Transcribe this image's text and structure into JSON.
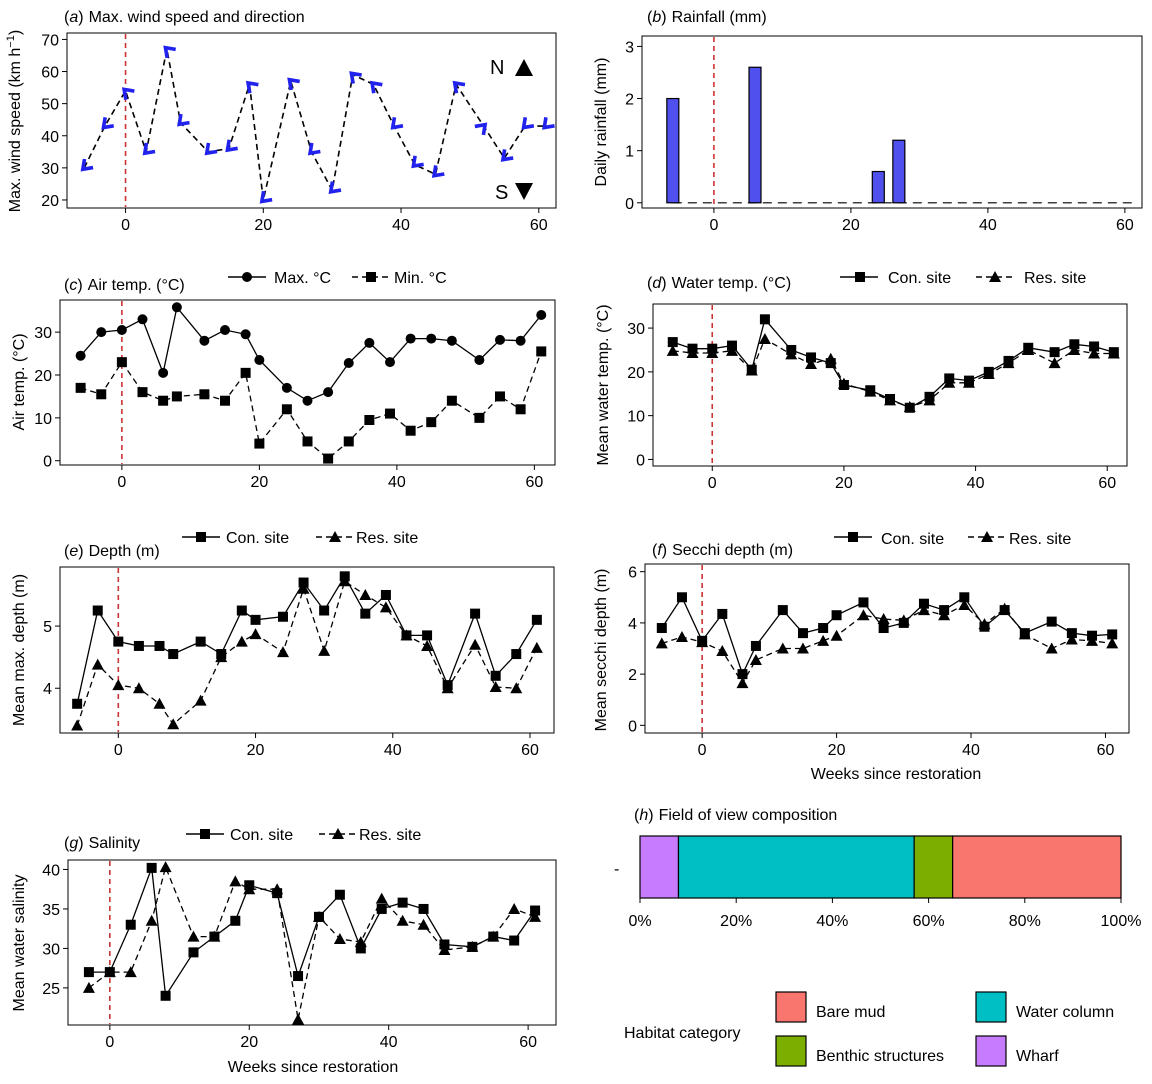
{
  "chart_data": [
    {
      "id": "a",
      "type": "line",
      "panel_letter": "a",
      "title": "Max. wind speed and direction",
      "xlabel": "",
      "ylabel": "Max. wind speed (km h",
      "ylabel_sup": "−1",
      "ylabel_end": ")",
      "xlim": [
        -8.5,
        62.5
      ],
      "ylim": [
        17.5,
        72
      ],
      "xticks": [
        0,
        20,
        40,
        60
      ],
      "yticks": [
        20,
        30,
        40,
        50,
        60,
        70
      ],
      "restoration_line_x": 0,
      "compass": {
        "north": "N",
        "south": "S"
      },
      "series": [
        {
          "name": "Max. wind speed",
          "x": [
            -6,
            -3,
            0,
            3,
            6,
            8,
            12,
            15,
            18,
            20,
            24,
            27,
            30,
            33,
            36,
            39,
            42,
            45,
            48,
            52,
            55,
            58,
            61
          ],
          "y": [
            30,
            43,
            54,
            35,
            67,
            44,
            35,
            36,
            56,
            20,
            57,
            35,
            23,
            59,
            56,
            43,
            31,
            28,
            56,
            43,
            33,
            43,
            43
          ],
          "direction_deg": [
            135,
            135,
            225,
            135,
            225,
            135,
            135,
            135,
            225,
            135,
            225,
            135,
            135,
            225,
            225,
            135,
            135,
            135,
            225,
            315,
            135,
            135,
            135
          ]
        }
      ]
    },
    {
      "id": "b",
      "type": "bar",
      "panel_letter": "b",
      "title": "Rainfall (mm)",
      "xlabel": "",
      "ylabel": "Daily rainfall (mm)",
      "xlim": [
        -10.5,
        62.5
      ],
      "ylim": [
        -0.1,
        3.2
      ],
      "xticks": [
        0,
        20,
        40,
        60
      ],
      "yticks": [
        0,
        1,
        2,
        3
      ],
      "restoration_line_x": 0,
      "x": [
        -6,
        6,
        24,
        27
      ],
      "values": [
        2.0,
        2.6,
        0.6,
        1.2
      ],
      "zero_line_x": [
        -6,
        61
      ]
    },
    {
      "id": "c",
      "type": "line",
      "panel_letter": "c",
      "title": "Air temp. (°C)",
      "xlabel": "",
      "ylabel": "Air temp. (°C)",
      "xlim": [
        -9,
        63
      ],
      "ylim": [
        -1,
        37.5
      ],
      "xticks": [
        0,
        20,
        40,
        60
      ],
      "yticks": [
        0,
        10,
        20,
        30
      ],
      "restoration_line_x": 0,
      "legend": {
        "position": "top"
      },
      "x": [
        -6,
        -3,
        0,
        3,
        6,
        8,
        12,
        15,
        18,
        20,
        24,
        27,
        30,
        33,
        36,
        39,
        42,
        45,
        48,
        52,
        55,
        58,
        61
      ],
      "series": [
        {
          "name": "Max. °C",
          "marker": "circle",
          "style": "solid",
          "values": [
            24.5,
            30,
            30.5,
            33,
            20.5,
            35.8,
            28,
            30.5,
            29.5,
            23.5,
            17,
            14,
            16,
            22.8,
            27.5,
            23,
            28.5,
            28.5,
            28,
            23.5,
            28.2,
            28,
            34
          ]
        },
        {
          "name": "Min. °C",
          "marker": "square",
          "style": "dashed",
          "values": [
            17,
            15.5,
            23,
            16,
            14,
            15,
            15.5,
            14,
            20.5,
            4,
            12,
            4.5,
            0.5,
            4.5,
            9.5,
            11,
            7,
            9,
            14,
            10,
            15,
            12,
            25.5
          ]
        }
      ]
    },
    {
      "id": "d",
      "type": "line",
      "panel_letter": "d",
      "title": "Water temp. (°C)",
      "xlabel": "",
      "ylabel": "Mean water temp. (°C)",
      "xlim": [
        -9,
        63
      ],
      "ylim": [
        -1.5,
        35.5
      ],
      "xticks": [
        0,
        20,
        40,
        60
      ],
      "yticks": [
        0,
        10,
        20,
        30
      ],
      "restoration_line_x": 0,
      "legend": {
        "position": "top"
      },
      "x": [
        -6,
        -3,
        0,
        3,
        6,
        8,
        12,
        15,
        18,
        20,
        24,
        27,
        30,
        33,
        36,
        39,
        42,
        45,
        48,
        52,
        55,
        58,
        61
      ],
      "series": [
        {
          "name": "Con. site",
          "marker": "square",
          "style": "solid",
          "values": [
            26.8,
            25.3,
            25.3,
            26,
            20.5,
            32,
            25,
            23.3,
            22,
            17,
            15.8,
            13.8,
            11.8,
            14.3,
            18.5,
            18,
            20,
            22.5,
            25.5,
            24.5,
            26.3,
            25.8,
            24.5
          ]
        },
        {
          "name": "Res. site",
          "marker": "triangle",
          "style": "dashed",
          "values": [
            24.8,
            24.3,
            24.3,
            24.8,
            20.3,
            27.5,
            24,
            21.8,
            23,
            17.3,
            15.5,
            13.5,
            12,
            13.5,
            17.5,
            17.5,
            19.5,
            22,
            25,
            22,
            25,
            24.2,
            24.2
          ]
        }
      ]
    },
    {
      "id": "e",
      "type": "line",
      "panel_letter": "e",
      "title": "Depth (m)",
      "xlabel": "",
      "ylabel": "Mean max. depth (m)",
      "xlim": [
        -8.5,
        63.5
      ],
      "ylim": [
        3.28,
        5.95
      ],
      "xticks": [
        0,
        20,
        40,
        60
      ],
      "yticks": [
        4,
        5
      ],
      "restoration_line_x": 0,
      "legend": {
        "position": "top"
      },
      "x": [
        -6,
        -3,
        0,
        3,
        6,
        8,
        12,
        15,
        18,
        20,
        24,
        27,
        30,
        33,
        36,
        39,
        42,
        45,
        48,
        52,
        55,
        58,
        61
      ],
      "series": [
        {
          "name": "Con. site",
          "marker": "square",
          "style": "solid",
          "values": [
            3.75,
            5.25,
            4.75,
            4.68,
            4.68,
            4.55,
            4.75,
            4.55,
            5.25,
            5.1,
            5.15,
            5.7,
            5.25,
            5.8,
            5.2,
            5.5,
            4.85,
            4.85,
            4.05,
            5.2,
            4.2,
            4.55,
            5.1
          ]
        },
        {
          "name": "Res. site",
          "marker": "triangle",
          "style": "dashed",
          "values": [
            3.4,
            4.38,
            4.05,
            4.0,
            3.75,
            3.42,
            3.8,
            4.5,
            4.75,
            4.87,
            4.58,
            5.6,
            4.6,
            5.72,
            5.5,
            5.3,
            4.85,
            4.68,
            4.0,
            4.7,
            4.02,
            4.0,
            4.65
          ]
        }
      ]
    },
    {
      "id": "f",
      "type": "line",
      "panel_letter": "f",
      "title": "Secchi depth (m)",
      "xlabel": "Weeks since restoration",
      "ylabel": "Mean secchi depth (m)",
      "xlim": [
        -8.5,
        63.5
      ],
      "ylim": [
        -0.3,
        6.3
      ],
      "xticks": [
        0,
        20,
        40,
        60
      ],
      "yticks": [
        0,
        2,
        4,
        6
      ],
      "restoration_line_x": 0,
      "legend": {
        "position": "top"
      },
      "x": [
        -6,
        -3,
        0,
        3,
        6,
        8,
        12,
        15,
        18,
        20,
        24,
        27,
        30,
        33,
        36,
        39,
        42,
        45,
        48,
        52,
        55,
        58,
        61
      ],
      "series": [
        {
          "name": "Con. site",
          "marker": "square",
          "style": "solid",
          "values": [
            3.8,
            5.0,
            3.3,
            4.35,
            2.0,
            3.1,
            4.5,
            3.6,
            3.8,
            4.3,
            4.8,
            3.8,
            4.0,
            4.75,
            4.5,
            5.0,
            3.85,
            4.5,
            3.6,
            4.05,
            3.6,
            3.5,
            3.55
          ]
        },
        {
          "name": "Res. site",
          "marker": "triangle",
          "style": "dashed",
          "values": [
            3.2,
            3.45,
            3.25,
            2.9,
            1.65,
            2.55,
            3.0,
            3.0,
            3.3,
            3.5,
            4.3,
            4.15,
            4.1,
            4.5,
            4.3,
            4.7,
            3.95,
            4.55,
            3.55,
            3.0,
            3.35,
            3.3,
            3.2
          ]
        }
      ]
    },
    {
      "id": "g",
      "type": "line",
      "panel_letter": "g",
      "title": "Salinity",
      "xlabel": "Weeks since restoration",
      "ylabel": "Mean water salinity",
      "xlim": [
        -6,
        64
      ],
      "ylim": [
        20.3,
        41.2
      ],
      "xticks": [
        0,
        20,
        40,
        60
      ],
      "yticks": [
        25,
        30,
        35,
        40
      ],
      "restoration_line_x": 0,
      "legend": {
        "position": "top"
      },
      "x": [
        -3,
        0,
        3,
        6,
        8,
        12,
        15,
        18,
        20,
        24,
        27,
        30,
        33,
        36,
        39,
        42,
        45,
        48,
        52,
        55,
        58,
        61
      ],
      "series": [
        {
          "name": "Con. site",
          "marker": "square",
          "style": "solid",
          "values": [
            27,
            27,
            33,
            40.2,
            24,
            29.5,
            31.5,
            33.5,
            38,
            37,
            26.5,
            34,
            36.8,
            30,
            35,
            35.8,
            35,
            30.5,
            30.2,
            31.5,
            31,
            34.8
          ]
        },
        {
          "name": "Res. site",
          "marker": "triangle",
          "style": "dashed",
          "values": [
            25,
            27,
            27,
            33.5,
            40.3,
            31.5,
            31.5,
            38.5,
            37.5,
            37.5,
            21,
            34,
            31.2,
            30.8,
            36.3,
            33.5,
            33,
            29.8,
            30.2,
            31.5,
            35,
            34
          ]
        }
      ]
    },
    {
      "id": "h",
      "type": "stacked-bar",
      "panel_letter": "h",
      "title": "Field of view composition",
      "xlabel": "",
      "ylabel": "",
      "category_label": "-",
      "xticks": [
        "0%",
        "20%",
        "40%",
        "60%",
        "80%",
        "100%"
      ],
      "segments": [
        {
          "name": "Wharf",
          "value": 8,
          "color": "#c77cff"
        },
        {
          "name": "Water column",
          "value": 49,
          "color": "#00bfc4"
        },
        {
          "name": "Benthic structures",
          "value": 8,
          "color": "#7cae00"
        },
        {
          "name": "Bare mud",
          "value": 35,
          "color": "#f8766d"
        }
      ],
      "legend_title": "Habitat category",
      "legend_order": [
        "Bare mud",
        "Water column",
        "Benthic structures",
        "Wharf"
      ]
    }
  ],
  "colors": {
    "accent": "#2222ee",
    "restoration_line": "#cc3333",
    "bar_fill": "#5050ee"
  }
}
